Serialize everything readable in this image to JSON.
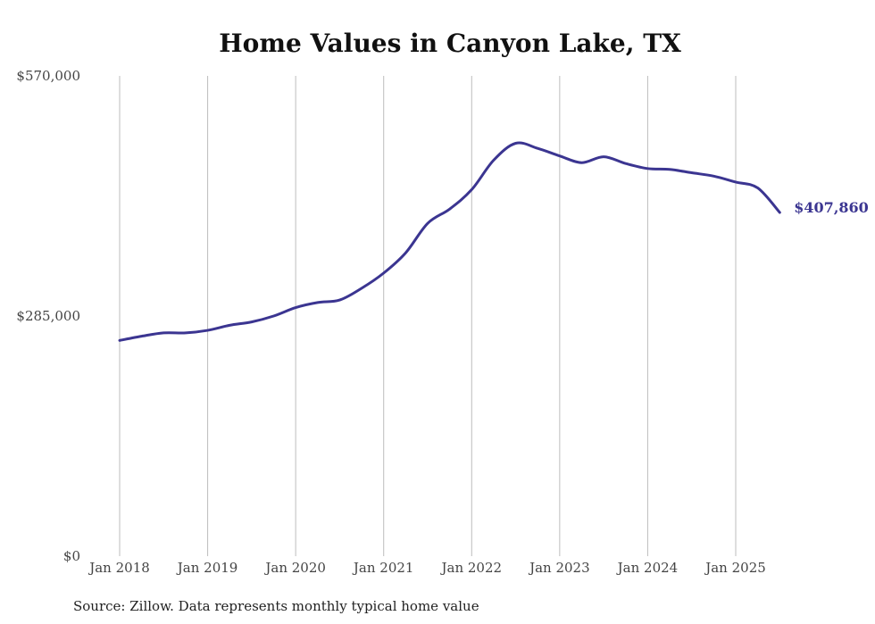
{
  "chart_data": {
    "type": "line",
    "title": "Home Values in Canyon Lake, TX",
    "source": "Source: Zillow. Data represents monthly typical home value",
    "xlabel": "",
    "ylabel": "",
    "ylim": [
      0,
      570000
    ],
    "y_ticks": [
      {
        "value": 0,
        "label": "$0"
      },
      {
        "value": 285000,
        "label": "$285,000"
      },
      {
        "value": 570000,
        "label": "$570,000"
      }
    ],
    "x_ticks": [
      {
        "value": "2018-01",
        "label": "Jan 2018"
      },
      {
        "value": "2019-01",
        "label": "Jan 2019"
      },
      {
        "value": "2020-01",
        "label": "Jan 2020"
      },
      {
        "value": "2021-01",
        "label": "Jan 2021"
      },
      {
        "value": "2022-01",
        "label": "Jan 2022"
      },
      {
        "value": "2023-01",
        "label": "Jan 2023"
      },
      {
        "value": "2024-01",
        "label": "Jan 2024"
      },
      {
        "value": "2025-01",
        "label": "Jan 2025"
      }
    ],
    "grid": "vertical",
    "line_color": "#3b3591",
    "series": [
      {
        "end_label": "$407,860",
        "points": [
          {
            "x": "2018-01",
            "y": 256000
          },
          {
            "x": "2018-04",
            "y": 261000
          },
          {
            "x": "2018-07",
            "y": 265000
          },
          {
            "x": "2018-10",
            "y": 265000
          },
          {
            "x": "2019-01",
            "y": 268000
          },
          {
            "x": "2019-04",
            "y": 274000
          },
          {
            "x": "2019-07",
            "y": 278000
          },
          {
            "x": "2019-10",
            "y": 285000
          },
          {
            "x": "2020-01",
            "y": 295000
          },
          {
            "x": "2020-04",
            "y": 301000
          },
          {
            "x": "2020-07",
            "y": 304000
          },
          {
            "x": "2020-10",
            "y": 318000
          },
          {
            "x": "2021-01",
            "y": 336000
          },
          {
            "x": "2021-04",
            "y": 360000
          },
          {
            "x": "2021-07",
            "y": 395000
          },
          {
            "x": "2021-10",
            "y": 412000
          },
          {
            "x": "2022-01",
            "y": 435000
          },
          {
            "x": "2022-04",
            "y": 470000
          },
          {
            "x": "2022-07",
            "y": 490000
          },
          {
            "x": "2022-10",
            "y": 484000
          },
          {
            "x": "2023-01",
            "y": 475000
          },
          {
            "x": "2023-04",
            "y": 467000
          },
          {
            "x": "2023-07",
            "y": 474000
          },
          {
            "x": "2023-10",
            "y": 466000
          },
          {
            "x": "2024-01",
            "y": 460000
          },
          {
            "x": "2024-04",
            "y": 459000
          },
          {
            "x": "2024-07",
            "y": 455000
          },
          {
            "x": "2024-10",
            "y": 451000
          },
          {
            "x": "2025-01",
            "y": 444000
          },
          {
            "x": "2025-04",
            "y": 437000
          },
          {
            "x": "2025-07",
            "y": 407860
          }
        ]
      }
    ]
  }
}
